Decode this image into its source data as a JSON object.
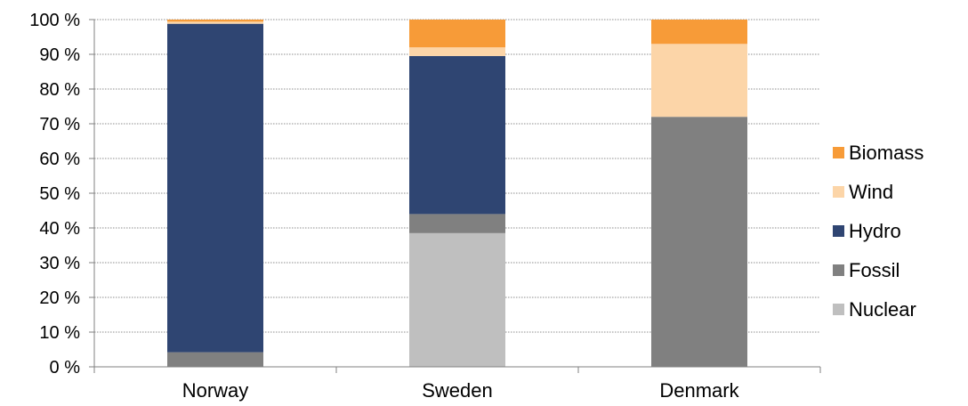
{
  "chart_data": {
    "type": "bar",
    "stacked": true,
    "categories": [
      "Norway",
      "Sweden",
      "Denmark"
    ],
    "series": [
      {
        "name": "Nuclear",
        "color": "#bfbfbf",
        "values": [
          0,
          38.5,
          0
        ]
      },
      {
        "name": "Fossil",
        "color": "#808080",
        "values": [
          4.2,
          5.5,
          72
        ]
      },
      {
        "name": "Hydro",
        "color": "#2f4572",
        "values": [
          94.6,
          45.5,
          0
        ]
      },
      {
        "name": "Wind",
        "color": "#fcd5a8",
        "values": [
          0.6,
          2.5,
          21
        ]
      },
      {
        "name": "Biomass",
        "color": "#f79b38",
        "values": [
          0.6,
          8,
          7
        ]
      }
    ],
    "yticks": [
      "0 %",
      "10 %",
      "20 %",
      "30 %",
      "40 %",
      "50 %",
      "60 %",
      "70 %",
      "80 %",
      "90 %",
      "100 %"
    ],
    "ylim": [
      0,
      100
    ],
    "grid": true,
    "legend_position": "right",
    "legend_order": [
      "Biomass",
      "Wind",
      "Hydro",
      "Fossil",
      "Nuclear"
    ]
  }
}
